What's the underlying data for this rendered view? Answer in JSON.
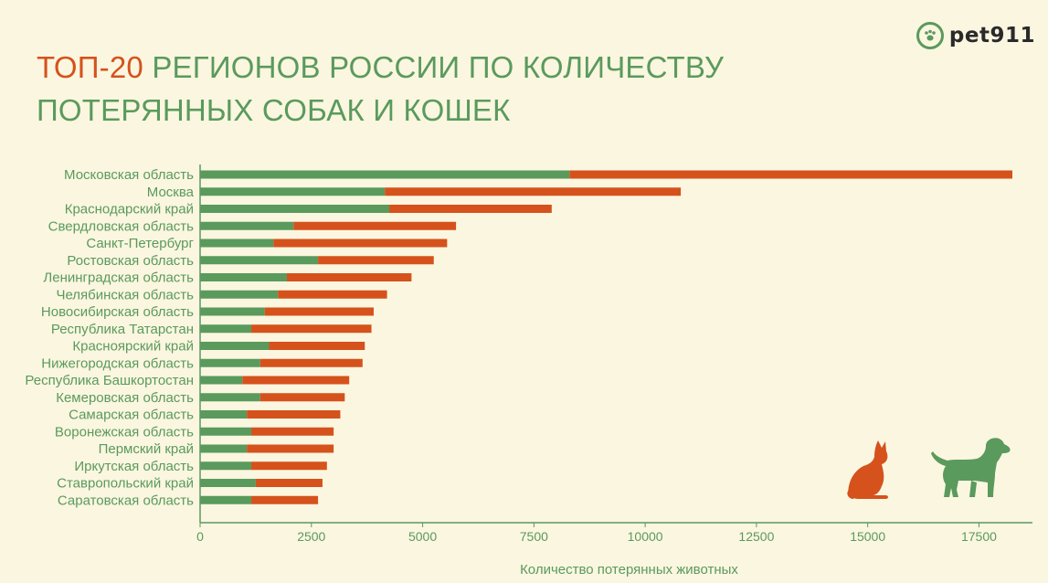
{
  "title": {
    "accent": "ТОП-20",
    "rest_line1": " РЕГИОНОВ РОССИИ ПО КОЛИЧЕСТВУ",
    "line2": "ПОТЕРЯННЫХ СОБАК И КОШЕК"
  },
  "logo": {
    "text": "pet911",
    "icon": "paw-icon"
  },
  "colors": {
    "green": "#5a9a5d",
    "orange": "#d5521c",
    "background": "#fbf6e0"
  },
  "chart_data": {
    "type": "bar",
    "orientation": "horizontal",
    "stacked": true,
    "categories": [
      "Московская область",
      "Москва",
      "Краснодарский край",
      "Свердловская область",
      "Санкт-Петербург",
      "Ростовская область",
      "Ленинградская область",
      "Челябинская область",
      "Новосибирская область",
      "Республика Татарстан",
      "Красноярский край",
      "Нижегородская область",
      "Республика Башкортостан",
      "Кемеровская область",
      "Самарская область",
      "Воронежская область",
      "Пермский край",
      "Иркутская область",
      "Ставропольский край",
      "Саратовская область"
    ],
    "series": [
      {
        "color": "#5a9a5d",
        "values": [
          8300,
          4150,
          4250,
          2100,
          1650,
          2650,
          1950,
          1750,
          1450,
          1150,
          1550,
          1350,
          950,
          1350,
          1050,
          1150,
          1050,
          1150,
          1250,
          1150
        ]
      },
      {
        "color": "#d5521c",
        "values": [
          9950,
          6650,
          3650,
          3650,
          3900,
          2600,
          2800,
          2450,
          2450,
          2700,
          2150,
          2300,
          2400,
          1900,
          2100,
          1850,
          1950,
          1700,
          1500,
          1500
        ]
      }
    ],
    "xlabel": "Количество потерянных животных",
    "xlim": [
      0,
      18500
    ],
    "xticks": [
      0,
      2500,
      5000,
      7500,
      10000,
      12500,
      15000,
      17500
    ],
    "grid": false
  },
  "illustrations": {
    "cat": "cat-icon",
    "dog": "dog-icon"
  }
}
